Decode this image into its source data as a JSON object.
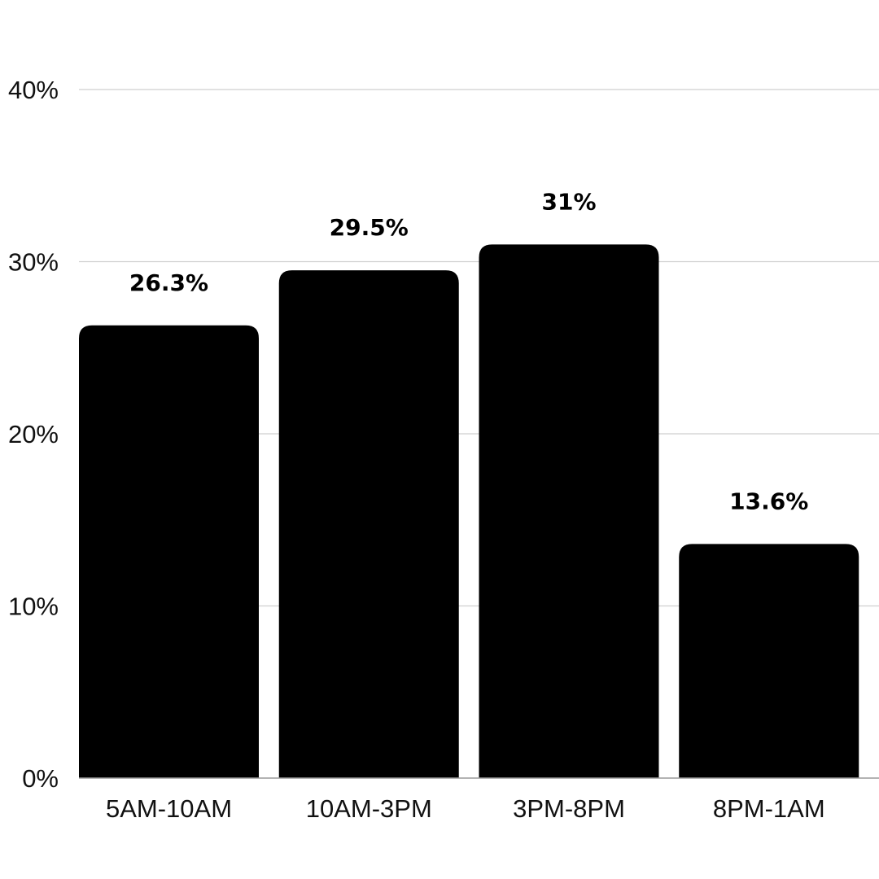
{
  "chart_data": {
    "type": "bar",
    "categories": [
      "5AM-10AM",
      "10AM-3PM",
      "3PM-8PM",
      "8PM-1AM"
    ],
    "values": [
      26.3,
      29.5,
      31,
      13.6
    ],
    "data_labels": [
      "26.3%",
      "29.5%",
      "31%",
      "13.6%"
    ],
    "ylim": [
      0,
      40
    ],
    "yticks": [
      0,
      10,
      20,
      30,
      40
    ],
    "ytick_labels": [
      "0%",
      "10%",
      "20%",
      "30%",
      "40%"
    ],
    "title": "",
    "xlabel": "",
    "ylabel": "",
    "grid": true,
    "bar_color": "#000000",
    "grid_color": "#cfcfcf"
  }
}
